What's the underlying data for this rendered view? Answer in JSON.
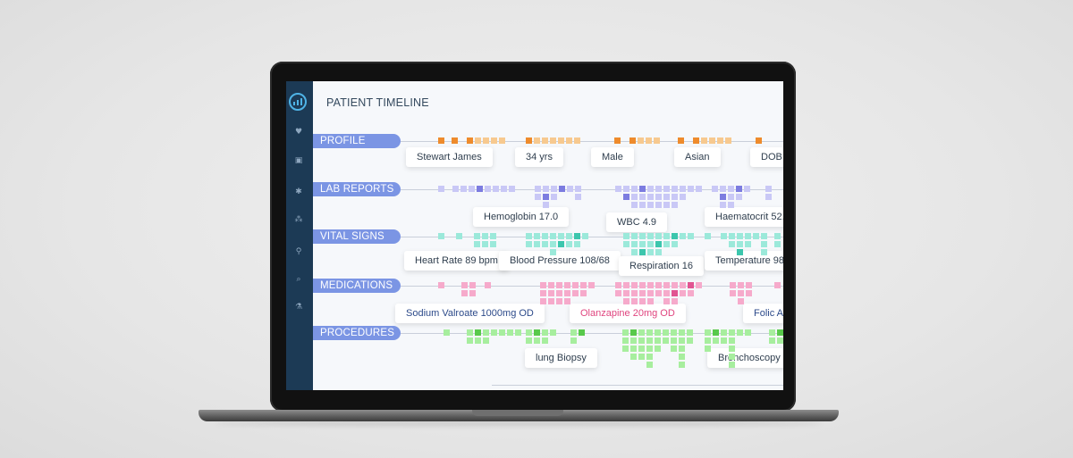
{
  "app": {
    "title": "PATIENT TIMELINE"
  },
  "sidebar": {
    "icons": [
      "logo-chart-icon",
      "heart-icon",
      "monitor-icon",
      "asterisk-icon",
      "molecule-icon",
      "microscope-icon",
      "probe-icon",
      "flask-icon"
    ]
  },
  "rows": [
    {
      "label": "PROFILE",
      "color": "#f7c98f",
      "accent": "#ee8b2c",
      "chips": [
        "Stewart James",
        "34 yrs",
        "Male",
        "Asian",
        "DOB"
      ]
    },
    {
      "label": "LAB REPORTS",
      "color": "#c9c8f6",
      "accent": "#7c7ce0",
      "chips": [
        "Hemoglobin 17.0",
        "WBC 4.9",
        "Haematocrit 52."
      ]
    },
    {
      "label": "VITAL SIGNS",
      "color": "#9be9da",
      "accent": "#3cc6ad",
      "chips": [
        "Heart Rate 89 bpm",
        "Blood Pressure 108/68",
        "Respiration 16",
        "Temperature 98"
      ]
    },
    {
      "label": "MEDICATIONS",
      "color": "#f6aacb",
      "accent": "#e15592",
      "chips": [
        "Sodium Valroate 1000mg OD",
        "Olanzapine 20mg OD",
        "Folic A"
      ],
      "chip_colors": [
        "#2c4a8a",
        "#e0457f",
        "#2c4a8a"
      ]
    },
    {
      "label": "PROCEDURES",
      "color": "#a7ee9e",
      "accent": "#58c94b",
      "chips": [
        "lung Biopsy",
        "Bronchoscopy"
      ]
    }
  ]
}
